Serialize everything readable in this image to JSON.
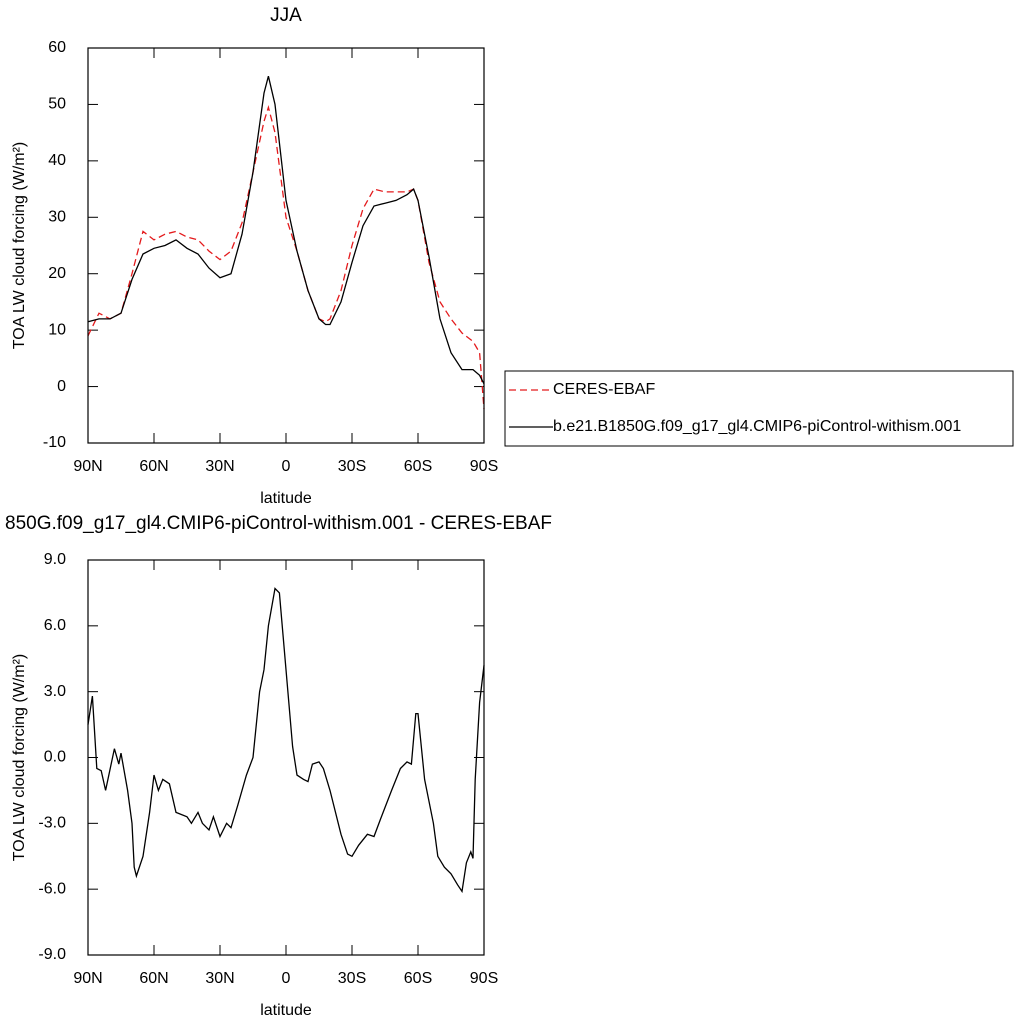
{
  "chart_data": [
    {
      "type": "line",
      "title": "JJA",
      "xlabel": "latitude",
      "ylabel": "TOA LW cloud forcing (W/m²)",
      "x": [
        90,
        85,
        80,
        75,
        70,
        65,
        60,
        55,
        50,
        45,
        40,
        35,
        30,
        25,
        20,
        15,
        10,
        8,
        5,
        0,
        -5,
        -10,
        -15,
        -18,
        -20,
        -25,
        -30,
        -35,
        -40,
        -45,
        -50,
        -55,
        -58,
        -60,
        -65,
        -70,
        -75,
        -80,
        -85,
        -88,
        -90
      ],
      "series": [
        {
          "name": "CERES-EBAF",
          "color": "#e41a1c",
          "line_style": "dashed",
          "values": [
            9,
            13,
            12,
            13,
            20,
            27.5,
            26,
            27,
            27.5,
            26.5,
            26,
            24,
            22.5,
            24,
            29,
            38,
            47,
            49.5,
            45,
            30,
            24,
            17,
            12,
            11.5,
            12,
            17,
            25,
            31.5,
            35,
            34.5,
            34.5,
            34.5,
            35,
            33,
            22,
            15,
            12,
            9.5,
            8,
            6,
            -4
          ]
        },
        {
          "name": "b.e21.B1850G.f09_g17_gl4.CMIP6-piControl-withism.001",
          "color": "#000000",
          "line_style": "solid",
          "values": [
            11.5,
            12,
            12,
            13,
            19,
            23.5,
            24.5,
            25,
            26,
            24.5,
            23.5,
            21,
            19.3,
            20,
            27,
            38,
            52,
            55,
            50,
            33,
            24,
            17,
            12,
            11,
            11,
            15,
            22,
            28.5,
            32,
            32.5,
            33,
            34,
            35,
            33,
            23,
            12,
            6,
            3,
            3,
            2,
            0.5
          ]
        }
      ],
      "xlim": [
        90,
        -90
      ],
      "xticks": [
        {
          "value": 90,
          "label": "90N"
        },
        {
          "value": 60,
          "label": "60N"
        },
        {
          "value": 30,
          "label": "30N"
        },
        0,
        {
          "value": -30,
          "label": "30S"
        },
        {
          "value": -60,
          "label": "60S"
        },
        {
          "value": -90,
          "label": "90S"
        }
      ],
      "ylim": [
        -10,
        60
      ],
      "yticks": [
        -10,
        0,
        10,
        20,
        30,
        40,
        50,
        60
      ],
      "legend": "right"
    },
    {
      "type": "line",
      "title": "850G.f09_g17_gl4.CMIP6-piControl-withism.001 - CERES-EBAF",
      "xlabel": "latitude",
      "ylabel": "TOA LW cloud forcing (W/m²)",
      "x": [
        90,
        88,
        86,
        84,
        82,
        78,
        76,
        75,
        72,
        70,
        69,
        68,
        65,
        62,
        60,
        58,
        56,
        53,
        50,
        45,
        43,
        40,
        38,
        35,
        33,
        30,
        27,
        25,
        22,
        18,
        15,
        12,
        10,
        8,
        5,
        3,
        0,
        -3,
        -5,
        -8,
        -10,
        -12,
        -15,
        -17,
        -20,
        -25,
        -28,
        -30,
        -33,
        -37,
        -40,
        -43,
        -48,
        -52,
        -55,
        -57,
        -59,
        -60,
        -63,
        -67,
        -69,
        -72,
        -75,
        -78,
        -80,
        -82,
        -84,
        -85,
        -86,
        -88,
        -90
      ],
      "values": [
        1.5,
        2.8,
        -0.5,
        -0.6,
        -1.5,
        0.4,
        -0.3,
        0.2,
        -1.5,
        -3,
        -5,
        -5.4,
        -4.5,
        -2.5,
        -0.8,
        -1.5,
        -1,
        -1.2,
        -2.5,
        -2.7,
        -3,
        -2.5,
        -3,
        -3.3,
        -2.7,
        -3.6,
        -3,
        -3.2,
        -2.2,
        -0.8,
        0,
        3,
        4,
        6,
        7.7,
        7.5,
        4,
        0.5,
        -0.8,
        -1,
        -1.1,
        -0.3,
        -0.2,
        -0.5,
        -1.5,
        -3.5,
        -4.4,
        -4.5,
        -4,
        -3.5,
        -3.6,
        -2.8,
        -1.5,
        -0.5,
        -0.2,
        -0.3,
        2,
        2,
        -1,
        -3,
        -4.5,
        -5,
        -5.3,
        -5.8,
        -6.1,
        -4.8,
        -4.3,
        -4.6,
        -1,
        2.5,
        4.2
      ],
      "color": "#000000",
      "xlim": [
        90,
        -90
      ],
      "xticks": [
        {
          "value": 90,
          "label": "90N"
        },
        {
          "value": 60,
          "label": "60N"
        },
        {
          "value": 30,
          "label": "30N"
        },
        0,
        {
          "value": -30,
          "label": "30S"
        },
        {
          "value": -60,
          "label": "60S"
        },
        {
          "value": -90,
          "label": "90S"
        }
      ],
      "ylim": [
        -9,
        9
      ],
      "yticks": [
        {
          "value": -9,
          "label": "-9.0"
        },
        {
          "value": -6,
          "label": "-6.0"
        },
        {
          "value": -3,
          "label": "-3.0"
        },
        {
          "value": 0,
          "label": "0.0"
        },
        {
          "value": 3,
          "label": "3.0"
        },
        {
          "value": 6,
          "label": "6.0"
        },
        {
          "value": 9,
          "label": "9.0"
        }
      ]
    }
  ]
}
